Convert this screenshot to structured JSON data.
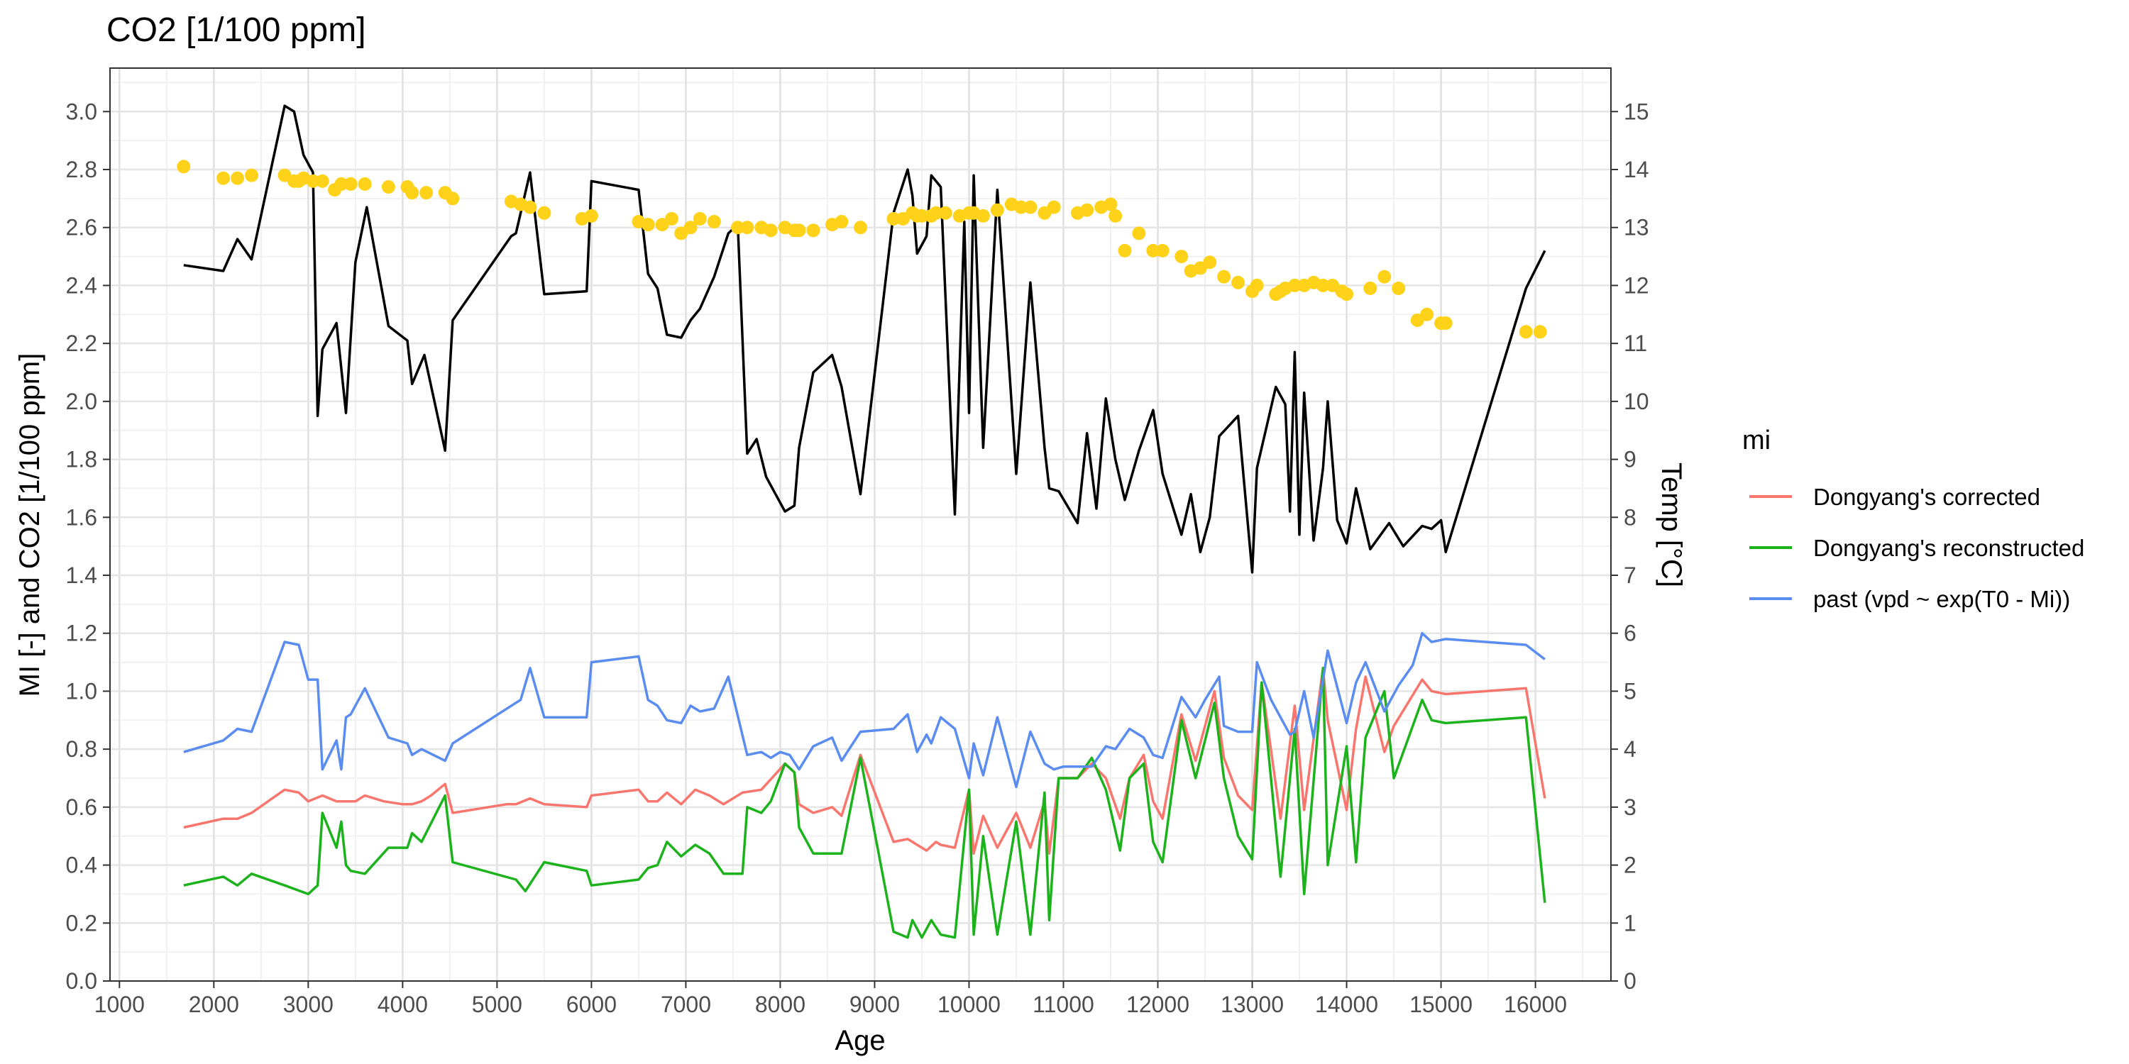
{
  "chart_data": {
    "type": "line",
    "title": "CO2 [1/100 ppm]",
    "xlabel": "Age",
    "ylabel": "MI [-] and CO2 [1/100 ppm]",
    "y2label": "Temp [°C]",
    "xlim": [
      900,
      16800
    ],
    "ylim": [
      0,
      3.15
    ],
    "y2lim": [
      0,
      15.75
    ],
    "x_ticks": [
      1000,
      2000,
      3000,
      4000,
      5000,
      6000,
      7000,
      8000,
      9000,
      10000,
      11000,
      12000,
      13000,
      14000,
      15000,
      16000
    ],
    "y_ticks": [
      0.0,
      0.2,
      0.4,
      0.6,
      0.8,
      1.0,
      1.2,
      1.4,
      1.6,
      1.8,
      2.0,
      2.2,
      2.4,
      2.6,
      2.8,
      3.0
    ],
    "y_tick_labels": [
      "0.0",
      "0.2",
      "0.4",
      "0.6",
      "0.8",
      "1.0",
      "1.2",
      "1.4",
      "1.6",
      "1.8",
      "2.0",
      "2.2",
      "2.4",
      "2.6",
      "2.8",
      "3.0"
    ],
    "y2_ticks": [
      0,
      1,
      2,
      3,
      4,
      5,
      6,
      7,
      8,
      9,
      10,
      11,
      12,
      13,
      14,
      15
    ],
    "grid": true,
    "legend": {
      "title": "mi",
      "position": "right",
      "entries": [
        "Dongyang's corrected",
        "Dongyang's reconstructed",
        "past (vpd ~ exp(T0 - Mi))"
      ]
    },
    "colors": {
      "corrected": "#F8766D",
      "reconstructed": "#1CB21C",
      "past": "#5B8CF0",
      "temp": "#000000",
      "co2": "#FFD21A"
    },
    "series": [
      {
        "name": "Dongyang's corrected",
        "axis": "left",
        "x": [
          1680,
          2100,
          2250,
          2400,
          2750,
          2900,
          3000,
          3150,
          3300,
          3400,
          3500,
          3600,
          3800,
          4000,
          4100,
          4200,
          4300,
          4450,
          4530,
          5100,
          5200,
          5350,
          5500,
          5950,
          6000,
          6500,
          6600,
          6700,
          6800,
          6950,
          7100,
          7250,
          7400,
          7600,
          7800,
          8050,
          8150,
          8200,
          8350,
          8550,
          8650,
          8850,
          9200,
          9350,
          9450,
          9550,
          9650,
          9700,
          9850,
          10000,
          10050,
          10150,
          10300,
          10500,
          10650,
          10800,
          10850,
          10950,
          11150,
          11300,
          11450,
          11600,
          11700,
          11850,
          11950,
          12050,
          12250,
          12400,
          12600,
          12700,
          12850,
          13000,
          13100,
          13300,
          13450,
          13550,
          13750,
          13800,
          14000,
          14100,
          14200,
          14400,
          14500,
          14800,
          14900,
          15050,
          15900,
          16100
        ],
        "values": [
          0.53,
          0.56,
          0.56,
          0.58,
          0.66,
          0.65,
          0.62,
          0.64,
          0.62,
          0.62,
          0.62,
          0.64,
          0.62,
          0.61,
          0.61,
          0.62,
          0.64,
          0.68,
          0.58,
          0.61,
          0.61,
          0.63,
          0.61,
          0.6,
          0.64,
          0.66,
          0.62,
          0.62,
          0.65,
          0.61,
          0.66,
          0.64,
          0.61,
          0.65,
          0.66,
          0.75,
          0.72,
          0.61,
          0.58,
          0.6,
          0.57,
          0.78,
          0.48,
          0.49,
          0.47,
          0.45,
          0.48,
          0.47,
          0.46,
          0.66,
          0.44,
          0.57,
          0.46,
          0.58,
          0.46,
          0.62,
          0.44,
          0.7,
          0.7,
          0.75,
          0.7,
          0.56,
          0.7,
          0.78,
          0.62,
          0.56,
          0.92,
          0.76,
          1.0,
          0.77,
          0.64,
          0.59,
          1.03,
          0.56,
          0.95,
          0.59,
          1.08,
          0.9,
          0.59,
          0.87,
          1.05,
          0.79,
          0.88,
          1.04,
          1.0,
          0.99,
          1.01,
          0.63
        ]
      },
      {
        "name": "Dongyang's reconstructed",
        "axis": "left",
        "x": [
          1680,
          2100,
          2250,
          2400,
          2750,
          3000,
          3100,
          3150,
          3300,
          3350,
          3400,
          3450,
          3600,
          3850,
          4050,
          4100,
          4200,
          4450,
          4530,
          5200,
          5300,
          5500,
          5950,
          6000,
          6500,
          6600,
          6700,
          6800,
          6950,
          7100,
          7250,
          7400,
          7600,
          7650,
          7800,
          7900,
          8050,
          8150,
          8200,
          8350,
          8550,
          8650,
          8850,
          9200,
          9350,
          9400,
          9500,
          9600,
          9700,
          9850,
          10000,
          10050,
          10150,
          10300,
          10500,
          10650,
          10800,
          10850,
          10950,
          11150,
          11300,
          11450,
          11600,
          11700,
          11850,
          11950,
          12050,
          12250,
          12400,
          12600,
          12700,
          12850,
          13000,
          13100,
          13300,
          13450,
          13550,
          13750,
          13800,
          14000,
          14100,
          14200,
          14400,
          14500,
          14800,
          14900,
          15050,
          15900,
          16100
        ],
        "values": [
          0.33,
          0.36,
          0.33,
          0.37,
          0.33,
          0.3,
          0.33,
          0.58,
          0.46,
          0.55,
          0.4,
          0.38,
          0.37,
          0.46,
          0.46,
          0.51,
          0.48,
          0.64,
          0.41,
          0.35,
          0.31,
          0.41,
          0.38,
          0.33,
          0.35,
          0.39,
          0.4,
          0.48,
          0.43,
          0.47,
          0.44,
          0.37,
          0.37,
          0.6,
          0.58,
          0.62,
          0.75,
          0.72,
          0.53,
          0.44,
          0.44,
          0.44,
          0.77,
          0.17,
          0.15,
          0.21,
          0.15,
          0.21,
          0.16,
          0.15,
          0.66,
          0.16,
          0.5,
          0.16,
          0.55,
          0.16,
          0.65,
          0.21,
          0.7,
          0.7,
          0.77,
          0.66,
          0.45,
          0.7,
          0.75,
          0.48,
          0.41,
          0.9,
          0.7,
          0.96,
          0.7,
          0.5,
          0.42,
          1.03,
          0.36,
          0.87,
          0.3,
          1.08,
          0.4,
          0.81,
          0.41,
          0.84,
          1.0,
          0.7,
          0.97,
          0.9,
          0.89,
          0.91,
          0.27
        ]
      },
      {
        "name": "past (vpd ~ exp(T0 - Mi))",
        "axis": "left",
        "x": [
          1680,
          2100,
          2250,
          2400,
          2750,
          2900,
          3000,
          3100,
          3150,
          3300,
          3350,
          3400,
          3450,
          3600,
          3850,
          4050,
          4100,
          4200,
          4450,
          4530,
          5200,
          5250,
          5350,
          5500,
          5950,
          6000,
          6500,
          6600,
          6700,
          6800,
          6950,
          7050,
          7150,
          7300,
          7450,
          7650,
          7800,
          7900,
          8000,
          8100,
          8200,
          8350,
          8550,
          8650,
          8850,
          9200,
          9350,
          9450,
          9550,
          9600,
          9700,
          9850,
          10000,
          10050,
          10150,
          10300,
          10500,
          10650,
          10800,
          10900,
          11000,
          11100,
          11300,
          11450,
          11550,
          11700,
          11850,
          11950,
          12050,
          12250,
          12400,
          12500,
          12650,
          12700,
          12850,
          13000,
          13050,
          13200,
          13400,
          13450,
          13550,
          13650,
          13800,
          14000,
          14100,
          14200,
          14400,
          14550,
          14700,
          14800,
          14900,
          15050,
          15900,
          16100
        ],
        "values": [
          0.79,
          0.83,
          0.87,
          0.86,
          1.17,
          1.16,
          1.04,
          1.04,
          0.73,
          0.83,
          0.73,
          0.91,
          0.92,
          1.01,
          0.84,
          0.82,
          0.78,
          0.8,
          0.76,
          0.82,
          0.96,
          0.97,
          1.08,
          0.91,
          0.91,
          1.1,
          1.12,
          0.97,
          0.95,
          0.9,
          0.89,
          0.95,
          0.93,
          0.94,
          1.05,
          0.78,
          0.79,
          0.77,
          0.79,
          0.78,
          0.73,
          0.81,
          0.84,
          0.76,
          0.86,
          0.87,
          0.92,
          0.79,
          0.85,
          0.82,
          0.91,
          0.87,
          0.7,
          0.82,
          0.71,
          0.91,
          0.67,
          0.86,
          0.75,
          0.73,
          0.74,
          0.74,
          0.74,
          0.81,
          0.8,
          0.87,
          0.84,
          0.78,
          0.77,
          0.98,
          0.91,
          0.97,
          1.05,
          0.88,
          0.86,
          0.86,
          1.1,
          0.97,
          0.85,
          0.86,
          1.0,
          0.84,
          1.14,
          0.89,
          1.03,
          1.1,
          0.93,
          1.02,
          1.09,
          1.2,
          1.17,
          1.18,
          1.16,
          1.11
        ]
      },
      {
        "name": "Temp",
        "axis": "right",
        "x": [
          1680,
          2100,
          2250,
          2400,
          2750,
          2850,
          2950,
          3050,
          3100,
          3150,
          3300,
          3400,
          3500,
          3620,
          3850,
          4050,
          4100,
          4230,
          4450,
          4530,
          5150,
          5200,
          5350,
          5500,
          5950,
          6000,
          6500,
          6600,
          6700,
          6800,
          6950,
          7050,
          7150,
          7300,
          7450,
          7550,
          7650,
          7750,
          7850,
          8050,
          8150,
          8200,
          8350,
          8550,
          8650,
          8850,
          9200,
          9350,
          9400,
          9450,
          9550,
          9600,
          9700,
          9850,
          9950,
          10000,
          10050,
          10150,
          10300,
          10500,
          10650,
          10800,
          10850,
          10950,
          11150,
          11250,
          11350,
          11450,
          11550,
          11650,
          11800,
          11950,
          12050,
          12250,
          12350,
          12450,
          12550,
          12650,
          12850,
          13000,
          13050,
          13250,
          13350,
          13400,
          13450,
          13500,
          13550,
          13650,
          13750,
          13800,
          13900,
          14000,
          14100,
          14250,
          14450,
          14600,
          14800,
          14900,
          15000,
          15050,
          15900,
          16100
        ],
        "values": [
          12.35,
          12.25,
          12.8,
          12.45,
          15.1,
          15.0,
          14.25,
          13.95,
          9.75,
          10.9,
          11.35,
          9.8,
          12.4,
          13.35,
          11.3,
          11.05,
          10.3,
          10.8,
          9.15,
          11.4,
          12.85,
          12.9,
          13.95,
          11.85,
          11.9,
          13.8,
          13.65,
          12.2,
          11.95,
          11.15,
          11.1,
          11.4,
          11.6,
          12.15,
          12.9,
          13.05,
          9.1,
          9.35,
          8.7,
          8.1,
          8.2,
          9.2,
          10.5,
          10.8,
          10.25,
          8.4,
          13.25,
          14.0,
          13.55,
          12.55,
          12.85,
          13.9,
          13.7,
          8.05,
          13.1,
          9.8,
          13.9,
          9.2,
          13.65,
          8.75,
          12.05,
          9.2,
          8.5,
          8.45,
          7.9,
          9.45,
          8.15,
          10.05,
          9.0,
          8.3,
          9.15,
          9.85,
          8.75,
          7.7,
          8.4,
          7.4,
          8.0,
          9.4,
          9.75,
          7.05,
          8.85,
          10.25,
          9.95,
          8.1,
          10.85,
          7.7,
          10.15,
          7.6,
          8.85,
          10.0,
          7.95,
          7.55,
          8.5,
          7.45,
          7.9,
          7.5,
          7.85,
          7.8,
          7.95,
          7.4,
          11.95,
          12.6
        ]
      },
      {
        "name": "CO2",
        "axis": "left",
        "type": "scatter",
        "x": [
          1680,
          2100,
          2250,
          2400,
          2750,
          2850,
          2900,
          2950,
          3050,
          3150,
          3280,
          3350,
          3450,
          3600,
          3850,
          4050,
          4100,
          4250,
          4450,
          4530,
          5150,
          5250,
          5350,
          5500,
          5900,
          6000,
          6500,
          6600,
          6750,
          6850,
          6950,
          7050,
          7150,
          7300,
          7550,
          7650,
          7800,
          7900,
          8050,
          8150,
          8200,
          8350,
          8550,
          8650,
          8850,
          9200,
          9300,
          9400,
          9450,
          9500,
          9600,
          9650,
          9750,
          9900,
          10000,
          10050,
          10150,
          10300,
          10450,
          10550,
          10650,
          10800,
          10900,
          11150,
          11250,
          11400,
          11500,
          11550,
          11650,
          11800,
          11950,
          12050,
          12250,
          12350,
          12450,
          12550,
          12700,
          12850,
          13000,
          13050,
          13250,
          13300,
          13350,
          13450,
          13550,
          13650,
          13750,
          13850,
          13950,
          14000,
          14250,
          14400,
          14550,
          14750,
          14850,
          15000,
          15050,
          15900,
          16050
        ],
        "values": [
          2.81,
          2.77,
          2.77,
          2.78,
          2.78,
          2.76,
          2.76,
          2.77,
          2.76,
          2.76,
          2.73,
          2.75,
          2.75,
          2.75,
          2.74,
          2.74,
          2.72,
          2.72,
          2.72,
          2.7,
          2.69,
          2.68,
          2.67,
          2.65,
          2.63,
          2.64,
          2.62,
          2.61,
          2.61,
          2.63,
          2.58,
          2.6,
          2.63,
          2.62,
          2.6,
          2.6,
          2.6,
          2.59,
          2.6,
          2.59,
          2.59,
          2.59,
          2.61,
          2.62,
          2.6,
          2.63,
          2.63,
          2.65,
          2.64,
          2.64,
          2.64,
          2.65,
          2.65,
          2.64,
          2.65,
          2.65,
          2.64,
          2.66,
          2.68,
          2.67,
          2.67,
          2.65,
          2.67,
          2.65,
          2.66,
          2.67,
          2.68,
          2.64,
          2.52,
          2.58,
          2.52,
          2.52,
          2.5,
          2.45,
          2.46,
          2.48,
          2.43,
          2.41,
          2.38,
          2.4,
          2.37,
          2.38,
          2.39,
          2.4,
          2.4,
          2.41,
          2.4,
          2.4,
          2.38,
          2.37,
          2.39,
          2.43,
          2.39,
          2.28,
          2.3,
          2.27,
          2.27,
          2.24,
          2.24
        ]
      }
    ]
  }
}
